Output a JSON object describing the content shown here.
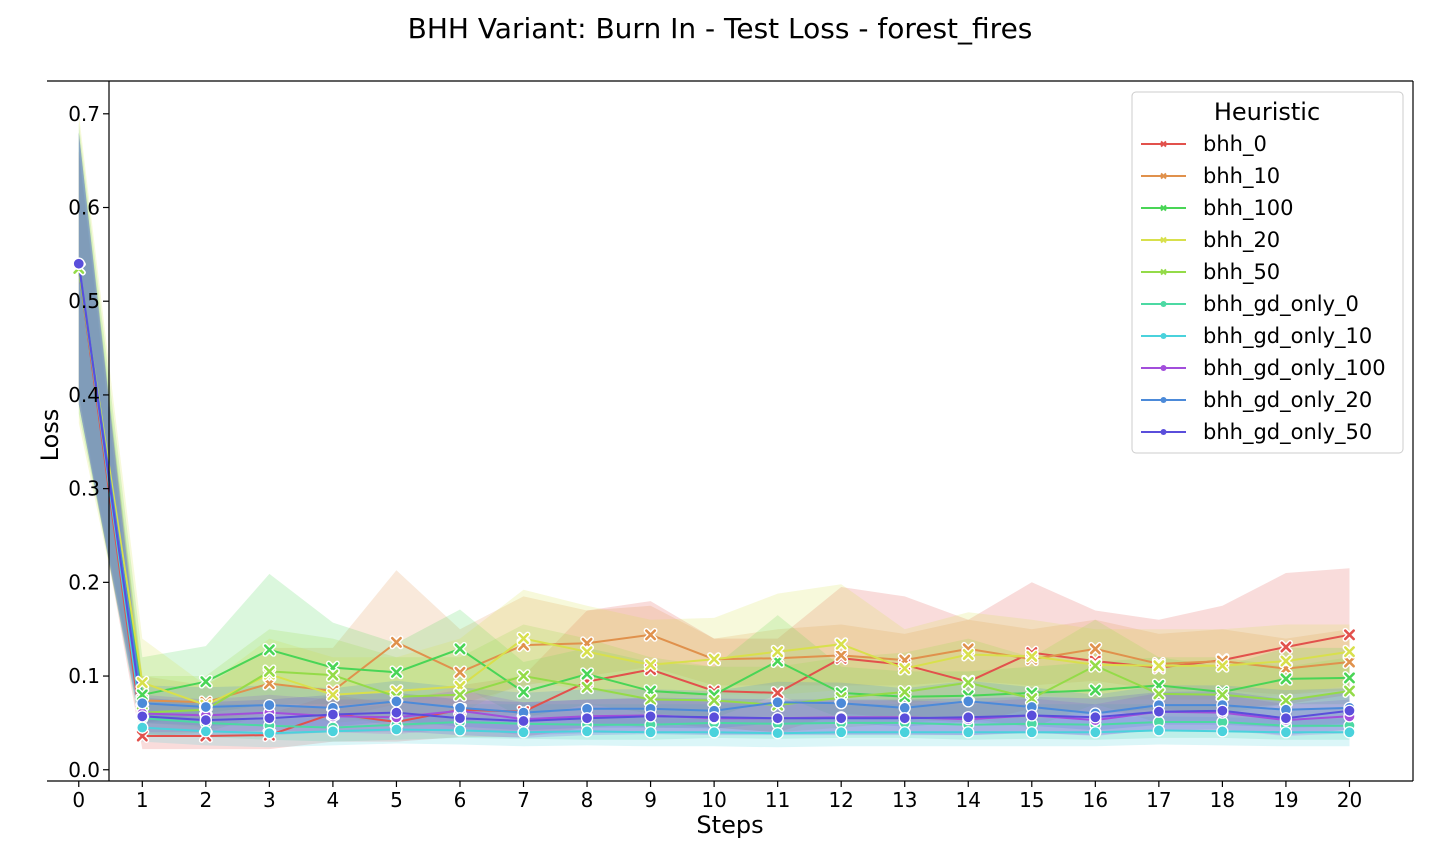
{
  "chart_data": {
    "type": "line",
    "title": "BHH Variant: Burn In - Test Loss - forest_fires",
    "xlabel": "Steps",
    "ylabel": "Loss",
    "x": [
      0,
      1,
      2,
      3,
      4,
      5,
      6,
      7,
      8,
      9,
      10,
      11,
      12,
      13,
      14,
      15,
      16,
      17,
      18,
      19,
      20
    ],
    "xlim": [
      -0.5,
      21.0
    ],
    "ylim": [
      -0.012,
      0.735
    ],
    "yticks": [
      0.0,
      0.1,
      0.2,
      0.3,
      0.4,
      0.5,
      0.6,
      0.7
    ],
    "ytick_labels": [
      "0.0",
      "0.1",
      "0.2",
      "0.3",
      "0.4",
      "0.5",
      "0.6",
      "0.7"
    ],
    "xtick_labels": [
      "0",
      "1",
      "2",
      "3",
      "4",
      "5",
      "6",
      "7",
      "8",
      "9",
      "10",
      "11",
      "12",
      "13",
      "14",
      "15",
      "16",
      "17",
      "18",
      "19",
      "20"
    ],
    "grid": false,
    "legend": {
      "title": "Heuristic",
      "position": "top-right"
    },
    "series": [
      {
        "name": "bhh_0",
        "color": "#e2514c",
        "marker": "x",
        "values": [
          0.535,
          0.036,
          0.036,
          0.037,
          0.06,
          0.051,
          0.064,
          0.062,
          0.094,
          0.107,
          0.084,
          0.082,
          0.119,
          0.112,
          0.094,
          0.125,
          0.116,
          0.109,
          0.117,
          0.131,
          0.144
        ],
        "upper": [
          0.66,
          0.06,
          0.06,
          0.06,
          0.08,
          0.07,
          0.09,
          0.1,
          0.17,
          0.18,
          0.14,
          0.14,
          0.195,
          0.185,
          0.16,
          0.2,
          0.17,
          0.16,
          0.175,
          0.21,
          0.215
        ],
        "lower": [
          0.4,
          0.022,
          0.022,
          0.022,
          0.03,
          0.03,
          0.035,
          0.035,
          0.045,
          0.05,
          0.045,
          0.04,
          0.06,
          0.055,
          0.05,
          0.065,
          0.06,
          0.06,
          0.065,
          0.07,
          0.08
        ]
      },
      {
        "name": "bhh_10",
        "color": "#e0914c",
        "marker": "x",
        "values": [
          0.535,
          0.074,
          0.072,
          0.092,
          0.084,
          0.136,
          0.104,
          0.133,
          0.135,
          0.144,
          0.118,
          0.119,
          0.122,
          0.117,
          0.129,
          0.118,
          0.129,
          0.113,
          0.116,
          0.108,
          0.115
        ],
        "upper": [
          0.66,
          0.1,
          0.09,
          0.13,
          0.13,
          0.213,
          0.15,
          0.185,
          0.17,
          0.175,
          0.14,
          0.15,
          0.155,
          0.145,
          0.16,
          0.15,
          0.16,
          0.145,
          0.15,
          0.14,
          0.15
        ],
        "lower": [
          0.4,
          0.05,
          0.055,
          0.06,
          0.055,
          0.07,
          0.07,
          0.09,
          0.1,
          0.11,
          0.09,
          0.09,
          0.09,
          0.09,
          0.095,
          0.09,
          0.095,
          0.085,
          0.085,
          0.08,
          0.085
        ]
      },
      {
        "name": "bhh_100",
        "color": "#49d556",
        "marker": "x",
        "values": [
          0.535,
          0.08,
          0.094,
          0.128,
          0.109,
          0.104,
          0.129,
          0.083,
          0.102,
          0.084,
          0.08,
          0.116,
          0.082,
          0.078,
          0.079,
          0.082,
          0.085,
          0.09,
          0.083,
          0.097,
          0.098
        ],
        "upper": [
          0.69,
          0.12,
          0.132,
          0.209,
          0.157,
          0.135,
          0.171,
          0.115,
          0.13,
          0.115,
          0.11,
          0.165,
          0.11,
          0.105,
          0.105,
          0.11,
          0.115,
          0.12,
          0.11,
          0.13,
          0.13
        ],
        "lower": [
          0.38,
          0.05,
          0.06,
          0.07,
          0.07,
          0.07,
          0.09,
          0.055,
          0.07,
          0.06,
          0.055,
          0.08,
          0.055,
          0.055,
          0.055,
          0.055,
          0.06,
          0.065,
          0.06,
          0.07,
          0.07
        ]
      },
      {
        "name": "bhh_20",
        "color": "#d8e04c",
        "marker": "x",
        "values": [
          0.535,
          0.093,
          0.069,
          0.102,
          0.08,
          0.084,
          0.089,
          0.14,
          0.126,
          0.112,
          0.118,
          0.126,
          0.134,
          0.108,
          0.123,
          0.121,
          0.112,
          0.111,
          0.111,
          0.116,
          0.126
        ],
        "upper": [
          0.7,
          0.14,
          0.09,
          0.14,
          0.12,
          0.12,
          0.14,
          0.192,
          0.175,
          0.16,
          0.162,
          0.188,
          0.198,
          0.15,
          0.168,
          0.16,
          0.15,
          0.15,
          0.15,
          0.155,
          0.155
        ],
        "lower": [
          0.37,
          0.05,
          0.045,
          0.065,
          0.05,
          0.055,
          0.06,
          0.095,
          0.085,
          0.075,
          0.08,
          0.08,
          0.085,
          0.07,
          0.08,
          0.08,
          0.075,
          0.075,
          0.075,
          0.08,
          0.09
        ]
      },
      {
        "name": "bhh_50",
        "color": "#94db48",
        "marker": "x",
        "values": [
          0.535,
          0.061,
          0.064,
          0.105,
          0.101,
          0.078,
          0.08,
          0.1,
          0.088,
          0.075,
          0.074,
          0.069,
          0.077,
          0.083,
          0.093,
          0.076,
          0.111,
          0.081,
          0.08,
          0.074,
          0.084
        ],
        "upper": [
          0.68,
          0.1,
          0.1,
          0.15,
          0.14,
          0.12,
          0.12,
          0.155,
          0.14,
          0.12,
          0.11,
          0.11,
          0.12,
          0.125,
          0.14,
          0.12,
          0.16,
          0.12,
          0.12,
          0.11,
          0.12
        ],
        "lower": [
          0.39,
          0.035,
          0.04,
          0.06,
          0.06,
          0.045,
          0.05,
          0.06,
          0.05,
          0.045,
          0.045,
          0.04,
          0.045,
          0.05,
          0.055,
          0.045,
          0.07,
          0.05,
          0.05,
          0.045,
          0.05
        ]
      },
      {
        "name": "bhh_gd_only_0",
        "color": "#4cd9a3",
        "marker": "o",
        "values": [
          0.54,
          0.055,
          0.05,
          0.047,
          0.045,
          0.048,
          0.051,
          0.049,
          0.048,
          0.048,
          0.05,
          0.049,
          0.05,
          0.05,
          0.048,
          0.049,
          0.048,
          0.051,
          0.051,
          0.047,
          0.047
        ],
        "upper": [
          0.68,
          0.075,
          0.07,
          0.07,
          0.065,
          0.07,
          0.07,
          0.07,
          0.07,
          0.07,
          0.07,
          0.07,
          0.07,
          0.07,
          0.07,
          0.07,
          0.07,
          0.07,
          0.07,
          0.065,
          0.065
        ],
        "lower": [
          0.39,
          0.035,
          0.035,
          0.032,
          0.03,
          0.032,
          0.034,
          0.033,
          0.032,
          0.032,
          0.034,
          0.033,
          0.034,
          0.034,
          0.032,
          0.033,
          0.032,
          0.034,
          0.034,
          0.032,
          0.032
        ]
      },
      {
        "name": "bhh_gd_only_10",
        "color": "#4ad2dc",
        "marker": "o",
        "values": [
          0.54,
          0.045,
          0.041,
          0.039,
          0.041,
          0.043,
          0.042,
          0.04,
          0.041,
          0.04,
          0.04,
          0.039,
          0.04,
          0.04,
          0.04,
          0.04,
          0.04,
          0.042,
          0.041,
          0.04,
          0.04
        ],
        "upper": [
          0.67,
          0.06,
          0.055,
          0.055,
          0.055,
          0.058,
          0.056,
          0.055,
          0.056,
          0.055,
          0.055,
          0.054,
          0.055,
          0.055,
          0.055,
          0.055,
          0.055,
          0.057,
          0.056,
          0.055,
          0.055
        ],
        "lower": [
          0.4,
          0.03,
          0.026,
          0.024,
          0.026,
          0.028,
          0.027,
          0.025,
          0.026,
          0.025,
          0.025,
          0.024,
          0.025,
          0.025,
          0.025,
          0.025,
          0.025,
          0.027,
          0.026,
          0.025,
          0.025
        ]
      },
      {
        "name": "bhh_gd_only_100",
        "color": "#a24edb",
        "marker": "o",
        "values": [
          0.54,
          0.06,
          0.058,
          0.061,
          0.057,
          0.056,
          0.063,
          0.054,
          0.057,
          0.058,
          0.055,
          0.055,
          0.056,
          0.056,
          0.054,
          0.058,
          0.053,
          0.062,
          0.061,
          0.053,
          0.057
        ],
        "upper": [
          0.68,
          0.08,
          0.075,
          0.08,
          0.075,
          0.075,
          0.085,
          0.072,
          0.075,
          0.076,
          0.072,
          0.072,
          0.074,
          0.074,
          0.072,
          0.076,
          0.07,
          0.082,
          0.08,
          0.07,
          0.075
        ],
        "lower": [
          0.39,
          0.04,
          0.04,
          0.042,
          0.04,
          0.038,
          0.044,
          0.037,
          0.039,
          0.04,
          0.038,
          0.038,
          0.038,
          0.038,
          0.037,
          0.04,
          0.036,
          0.043,
          0.042,
          0.036,
          0.039
        ]
      },
      {
        "name": "bhh_gd_only_20",
        "color": "#4c8ad9",
        "marker": "o",
        "values": [
          0.54,
          0.071,
          0.067,
          0.069,
          0.066,
          0.073,
          0.066,
          0.061,
          0.065,
          0.065,
          0.063,
          0.072,
          0.071,
          0.066,
          0.073,
          0.067,
          0.06,
          0.069,
          0.069,
          0.064,
          0.066
        ],
        "upper": [
          0.68,
          0.09,
          0.088,
          0.09,
          0.087,
          0.095,
          0.088,
          0.082,
          0.086,
          0.086,
          0.084,
          0.094,
          0.093,
          0.087,
          0.095,
          0.088,
          0.08,
          0.09,
          0.09,
          0.085,
          0.087
        ],
        "lower": [
          0.39,
          0.05,
          0.047,
          0.048,
          0.046,
          0.052,
          0.046,
          0.042,
          0.045,
          0.045,
          0.044,
          0.05,
          0.05,
          0.046,
          0.051,
          0.047,
          0.042,
          0.048,
          0.048,
          0.045,
          0.046
        ]
      },
      {
        "name": "bhh_gd_only_50",
        "color": "#5a4edb",
        "marker": "o",
        "values": [
          0.54,
          0.057,
          0.053,
          0.055,
          0.059,
          0.061,
          0.055,
          0.052,
          0.055,
          0.057,
          0.056,
          0.055,
          0.055,
          0.055,
          0.056,
          0.058,
          0.056,
          0.062,
          0.063,
          0.055,
          0.063
        ],
        "upper": [
          0.68,
          0.077,
          0.072,
          0.075,
          0.08,
          0.082,
          0.075,
          0.072,
          0.075,
          0.077,
          0.076,
          0.075,
          0.075,
          0.075,
          0.076,
          0.078,
          0.076,
          0.083,
          0.084,
          0.075,
          0.084
        ],
        "lower": [
          0.39,
          0.038,
          0.035,
          0.037,
          0.04,
          0.041,
          0.037,
          0.034,
          0.037,
          0.038,
          0.037,
          0.037,
          0.037,
          0.037,
          0.037,
          0.039,
          0.037,
          0.042,
          0.043,
          0.037,
          0.043
        ]
      }
    ]
  }
}
